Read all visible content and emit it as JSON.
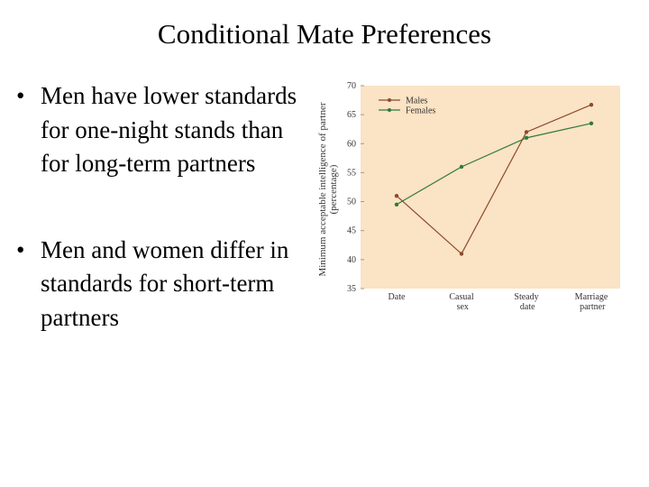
{
  "title": "Conditional Mate Preferences",
  "bullets": [
    "Men have lower standards for one-night stands than for long-term partners",
    "Men and women differ in standards for short-term partners"
  ],
  "chart_data": {
    "type": "line",
    "ylabel": "Minimum acceptable intelligence of partner (percentage)",
    "categories": [
      "Date",
      "Casual sex",
      "Steady date",
      "Marriage partner"
    ],
    "series": [
      {
        "name": "Males",
        "color": "#8b4a2b",
        "values": [
          51,
          41,
          62,
          66.7
        ]
      },
      {
        "name": "Females",
        "color": "#2f7a3a",
        "values": [
          49.5,
          56,
          61,
          63.5
        ]
      }
    ],
    "ylim": [
      35,
      70
    ],
    "yticks": [
      35,
      40,
      45,
      50,
      55,
      60,
      65,
      70
    ],
    "legend": "upper-left",
    "background": "#fbe3c5"
  }
}
